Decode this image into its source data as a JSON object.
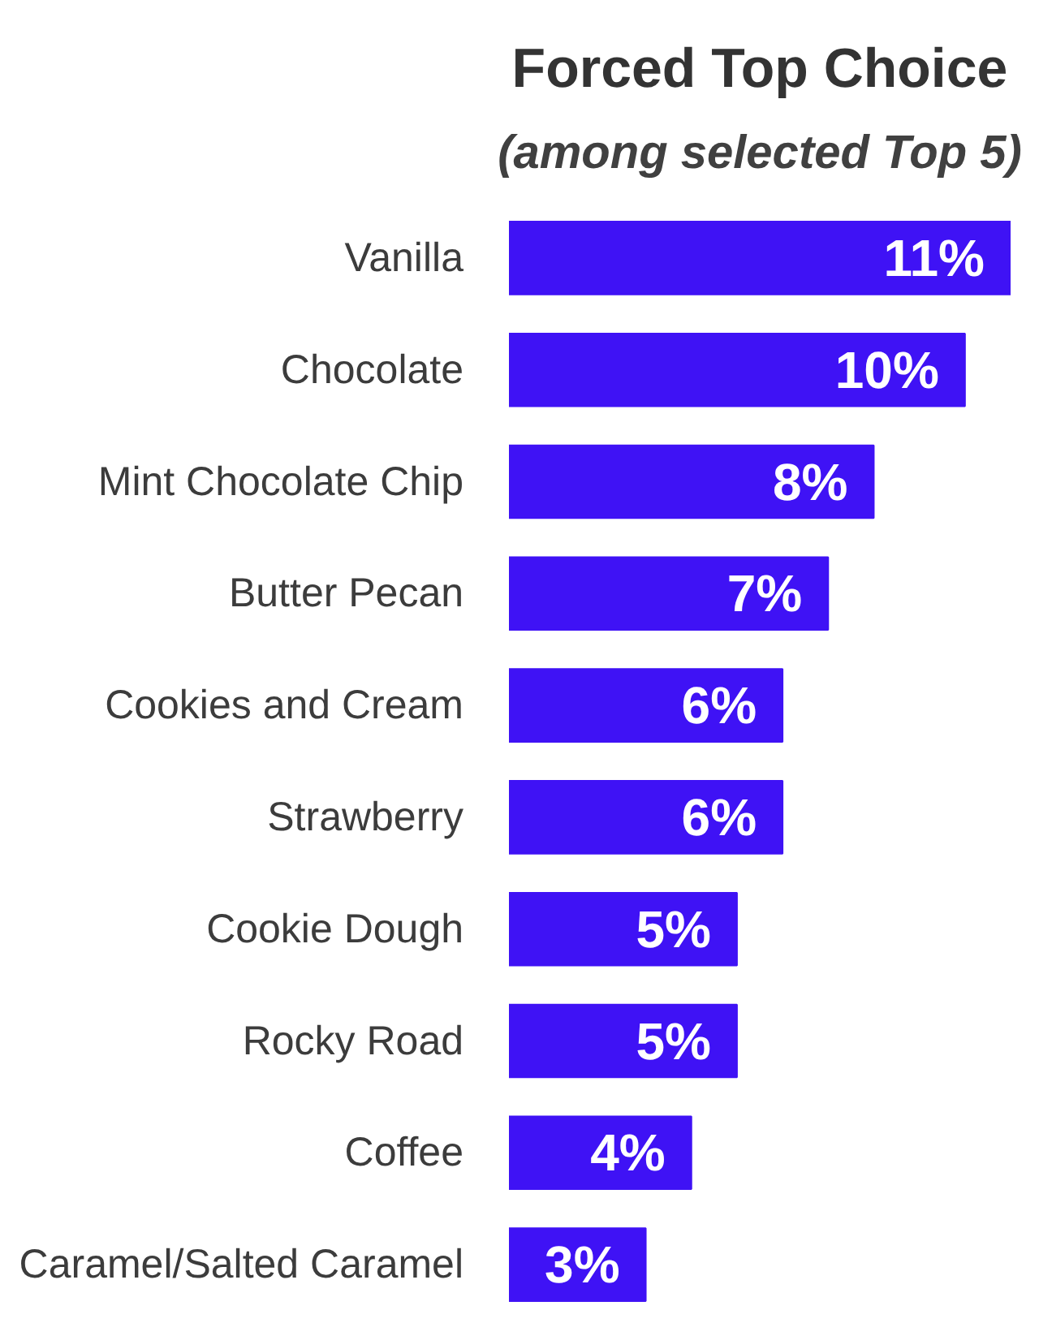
{
  "chart_data": {
    "type": "bar",
    "orientation": "horizontal",
    "title": "Forced Top Choice",
    "subtitle": "(among selected Top 5)",
    "categories": [
      "Vanilla",
      "Chocolate",
      "Mint Chocolate Chip",
      "Butter Pecan",
      "Cookies and Cream",
      "Strawberry",
      "Cookie Dough",
      "Rocky Road",
      "Coffee",
      "Caramel/Salted Caramel"
    ],
    "values": [
      11,
      10,
      8,
      7,
      6,
      6,
      5,
      5,
      4,
      3
    ],
    "color": "#3f12f5",
    "value_labels": [
      "11%",
      "10%",
      "8%",
      "7%",
      "6%",
      "6%",
      "5%",
      "5%",
      "4%",
      "3%"
    ]
  }
}
